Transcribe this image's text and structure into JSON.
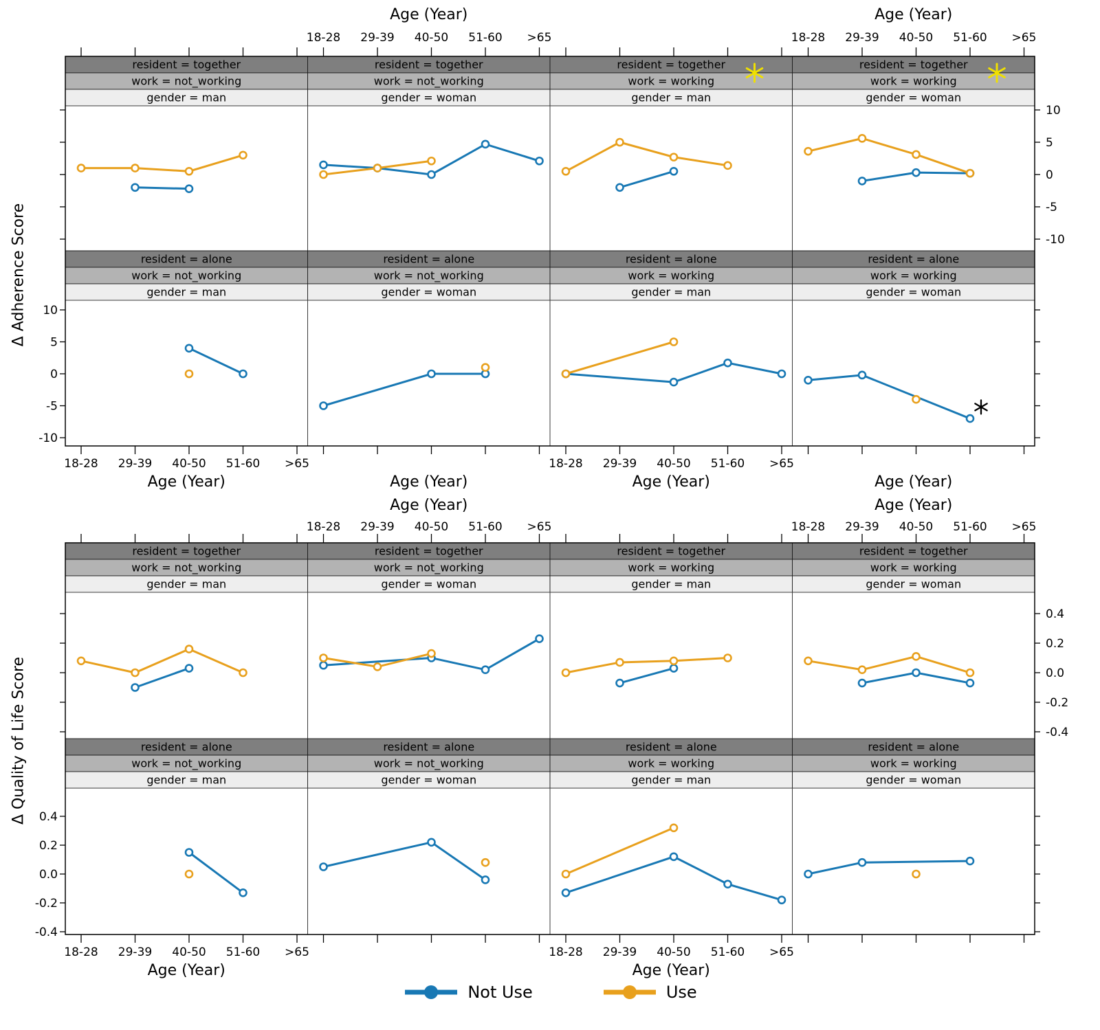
{
  "legend": {
    "items": [
      {
        "label": "Not Use",
        "color": "#1878b4"
      },
      {
        "label": "Use",
        "color": "#e8a01d"
      }
    ]
  },
  "style": {
    "strip_colors": [
      "#7f7f7f",
      "#b3b3b3",
      "#eeeeee"
    ],
    "yellow_asterisk_color": "#f0e000",
    "black_asterisk_color": "#000000"
  },
  "chart_data": [
    {
      "type": "line",
      "title": "",
      "xlabel": "Age (Year)",
      "ylabel": "Δ Adherence Score",
      "categories": [
        "18-28",
        "29-39",
        "40-50",
        "51-60",
        ">65"
      ],
      "yticks": [
        "10",
        "5",
        "0",
        "-5",
        "-10"
      ],
      "ylim": [
        -12,
        11
      ],
      "grid": false,
      "legend_position": "bottom",
      "facet_vars": [
        "resident",
        "work",
        "gender"
      ],
      "panels": [
        {
          "row": 0,
          "col": 0,
          "strips": [
            "resident = together",
            "work = not_working",
            "gender = man"
          ],
          "series": [
            {
              "name": "Not Use",
              "points": [
                [
                  1,
                  -2
                ],
                [
                  2,
                  -2.2
                ]
              ]
            },
            {
              "name": "Use",
              "points": [
                [
                  0,
                  1
                ],
                [
                  1,
                  1
                ],
                [
                  2,
                  0.5
                ],
                [
                  3,
                  3
                ]
              ]
            }
          ]
        },
        {
          "row": 0,
          "col": 1,
          "strips": [
            "resident = together",
            "work = not_working",
            "gender = woman"
          ],
          "series": [
            {
              "name": "Not Use",
              "points": [
                [
                  0,
                  1.5
                ],
                [
                  1,
                  1
                ],
                [
                  2,
                  0
                ],
                [
                  3,
                  4.7
                ],
                [
                  4,
                  2.1
                ]
              ]
            },
            {
              "name": "Use",
              "points": [
                [
                  0,
                  0
                ],
                [
                  1,
                  1
                ],
                [
                  2,
                  2.1
                ]
              ]
            }
          ]
        },
        {
          "row": 0,
          "col": 2,
          "strips": [
            "resident = together",
            "work = working",
            "gender = man"
          ],
          "series": [
            {
              "name": "Not Use",
              "points": [
                [
                  1,
                  -2
                ],
                [
                  2,
                  0.5
                ]
              ]
            },
            {
              "name": "Use",
              "points": [
                [
                  0,
                  0.5
                ],
                [
                  1,
                  5
                ],
                [
                  2,
                  2.7
                ],
                [
                  3,
                  1.4
                ]
              ]
            }
          ]
        },
        {
          "row": 0,
          "col": 3,
          "strips": [
            "resident = together",
            "work = working",
            "gender = woman"
          ],
          "series": [
            {
              "name": "Not Use",
              "points": [
                [
                  1,
                  -1
                ],
                [
                  2,
                  0.3
                ],
                [
                  3,
                  0.2
                ]
              ]
            },
            {
              "name": "Use",
              "points": [
                [
                  0,
                  3.6
                ],
                [
                  1,
                  5.6
                ],
                [
                  2,
                  3.1
                ],
                [
                  3,
                  0.2
                ]
              ]
            }
          ]
        },
        {
          "row": 1,
          "col": 0,
          "strips": [
            "resident = alone",
            "work = not_working",
            "gender = man"
          ],
          "series": [
            {
              "name": "Not Use",
              "points": [
                [
                  2,
                  4
                ],
                [
                  3,
                  0
                ]
              ]
            },
            {
              "name": "Use",
              "points": [
                [
                  2,
                  0
                ]
              ]
            }
          ]
        },
        {
          "row": 1,
          "col": 1,
          "strips": [
            "resident = alone",
            "work = not_working",
            "gender = woman"
          ],
          "series": [
            {
              "name": "Not Use",
              "points": [
                [
                  0,
                  -5
                ],
                [
                  2,
                  0
                ],
                [
                  3,
                  0
                ]
              ]
            },
            {
              "name": "Use",
              "points": [
                [
                  3,
                  1
                ]
              ]
            }
          ]
        },
        {
          "row": 1,
          "col": 2,
          "strips": [
            "resident = alone",
            "work = working",
            "gender = man"
          ],
          "series": [
            {
              "name": "Not Use",
              "points": [
                [
                  0,
                  0
                ],
                [
                  2,
                  -1.3
                ],
                [
                  3,
                  1.7
                ],
                [
                  4,
                  0
                ]
              ]
            },
            {
              "name": "Use",
              "points": [
                [
                  0,
                  0
                ],
                [
                  2,
                  5
                ]
              ]
            }
          ]
        },
        {
          "row": 1,
          "col": 3,
          "strips": [
            "resident = alone",
            "work = working",
            "gender = woman"
          ],
          "series": [
            {
              "name": "Not Use",
              "points": [
                [
                  0,
                  -1
                ],
                [
                  1,
                  -0.2
                ],
                [
                  3,
                  -7
                ]
              ]
            },
            {
              "name": "Use",
              "points": [
                [
                  2,
                  -4
                ]
              ]
            }
          ]
        }
      ],
      "annotations": [
        {
          "type": "asterisk",
          "color": "yellow",
          "row": 0,
          "col": 2,
          "anchor": "strip-right"
        },
        {
          "type": "asterisk",
          "color": "yellow",
          "row": 0,
          "col": 3,
          "anchor": "strip-right"
        },
        {
          "type": "asterisk",
          "color": "black",
          "row": 1,
          "col": 3,
          "anchor": "data",
          "x": 3,
          "y": -5.2
        }
      ]
    },
    {
      "type": "line",
      "title": "",
      "xlabel": "Age (Year)",
      "ylabel": "Δ Quality of Life Score",
      "categories": [
        "18-28",
        "29-39",
        "40-50",
        "51-60",
        ">65"
      ],
      "yticks": [
        "0.4",
        "0.2",
        "0.0",
        "-0.2",
        "-0.4"
      ],
      "ylim": [
        -0.5,
        0.55
      ],
      "grid": false,
      "legend_position": "bottom",
      "facet_vars": [
        "resident",
        "work",
        "gender"
      ],
      "panels": [
        {
          "row": 0,
          "col": 0,
          "strips": [
            "resident = together",
            "work = not_working",
            "gender = man"
          ],
          "series": [
            {
              "name": "Not Use",
              "points": [
                [
                  1,
                  -0.1
                ],
                [
                  2,
                  0.03
                ]
              ]
            },
            {
              "name": "Use",
              "points": [
                [
                  0,
                  0.08
                ],
                [
                  1,
                  0
                ],
                [
                  2,
                  0.16
                ],
                [
                  3,
                  0
                ]
              ]
            }
          ]
        },
        {
          "row": 0,
          "col": 1,
          "strips": [
            "resident = together",
            "work = not_working",
            "gender = woman"
          ],
          "series": [
            {
              "name": "Not Use",
              "points": [
                [
                  0,
                  0.05
                ],
                [
                  2,
                  0.1
                ],
                [
                  3,
                  0.02
                ],
                [
                  4,
                  0.23
                ]
              ]
            },
            {
              "name": "Use",
              "points": [
                [
                  0,
                  0.1
                ],
                [
                  1,
                  0.04
                ],
                [
                  2,
                  0.13
                ]
              ]
            }
          ]
        },
        {
          "row": 0,
          "col": 2,
          "strips": [
            "resident = together",
            "work = working",
            "gender = man"
          ],
          "series": [
            {
              "name": "Not Use",
              "points": [
                [
                  1,
                  -0.07
                ],
                [
                  2,
                  0.03
                ]
              ]
            },
            {
              "name": "Use",
              "points": [
                [
                  0,
                  0
                ],
                [
                  1,
                  0.07
                ],
                [
                  2,
                  0.08
                ],
                [
                  3,
                  0.1
                ]
              ]
            }
          ]
        },
        {
          "row": 0,
          "col": 3,
          "strips": [
            "resident = together",
            "work = working",
            "gender = woman"
          ],
          "series": [
            {
              "name": "Not Use",
              "points": [
                [
                  1,
                  -0.07
                ],
                [
                  2,
                  0
                ],
                [
                  3,
                  -0.07
                ]
              ]
            },
            {
              "name": "Use",
              "points": [
                [
                  0,
                  0.08
                ],
                [
                  1,
                  0.02
                ],
                [
                  2,
                  0.11
                ],
                [
                  3,
                  0
                ]
              ]
            }
          ]
        },
        {
          "row": 1,
          "col": 0,
          "strips": [
            "resident = alone",
            "work = not_working",
            "gender = man"
          ],
          "series": [
            {
              "name": "Not Use",
              "points": [
                [
                  2,
                  0.15
                ],
                [
                  3,
                  -0.13
                ]
              ]
            },
            {
              "name": "Use",
              "points": [
                [
                  2,
                  0
                ]
              ]
            }
          ]
        },
        {
          "row": 1,
          "col": 1,
          "strips": [
            "resident = alone",
            "work = not_working",
            "gender = woman"
          ],
          "series": [
            {
              "name": "Not Use",
              "points": [
                [
                  0,
                  0.05
                ],
                [
                  2,
                  0.22
                ],
                [
                  3,
                  -0.04
                ]
              ]
            },
            {
              "name": "Use",
              "points": [
                [
                  3,
                  0.08
                ]
              ]
            }
          ]
        },
        {
          "row": 1,
          "col": 2,
          "strips": [
            "resident = alone",
            "work = working",
            "gender = man"
          ],
          "series": [
            {
              "name": "Not Use",
              "points": [
                [
                  0,
                  -0.13
                ],
                [
                  2,
                  0.12
                ],
                [
                  3,
                  -0.07
                ],
                [
                  4,
                  -0.18
                ]
              ]
            },
            {
              "name": "Use",
              "points": [
                [
                  0,
                  0
                ],
                [
                  2,
                  0.32
                ]
              ]
            }
          ]
        },
        {
          "row": 1,
          "col": 3,
          "strips": [
            "resident = alone",
            "work = working",
            "gender = woman"
          ],
          "series": [
            {
              "name": "Not Use",
              "points": [
                [
                  0,
                  0
                ],
                [
                  1,
                  0.08
                ],
                [
                  3,
                  0.09
                ]
              ]
            },
            {
              "name": "Use",
              "points": [
                [
                  2,
                  0
                ]
              ]
            }
          ]
        }
      ],
      "annotations": []
    }
  ]
}
